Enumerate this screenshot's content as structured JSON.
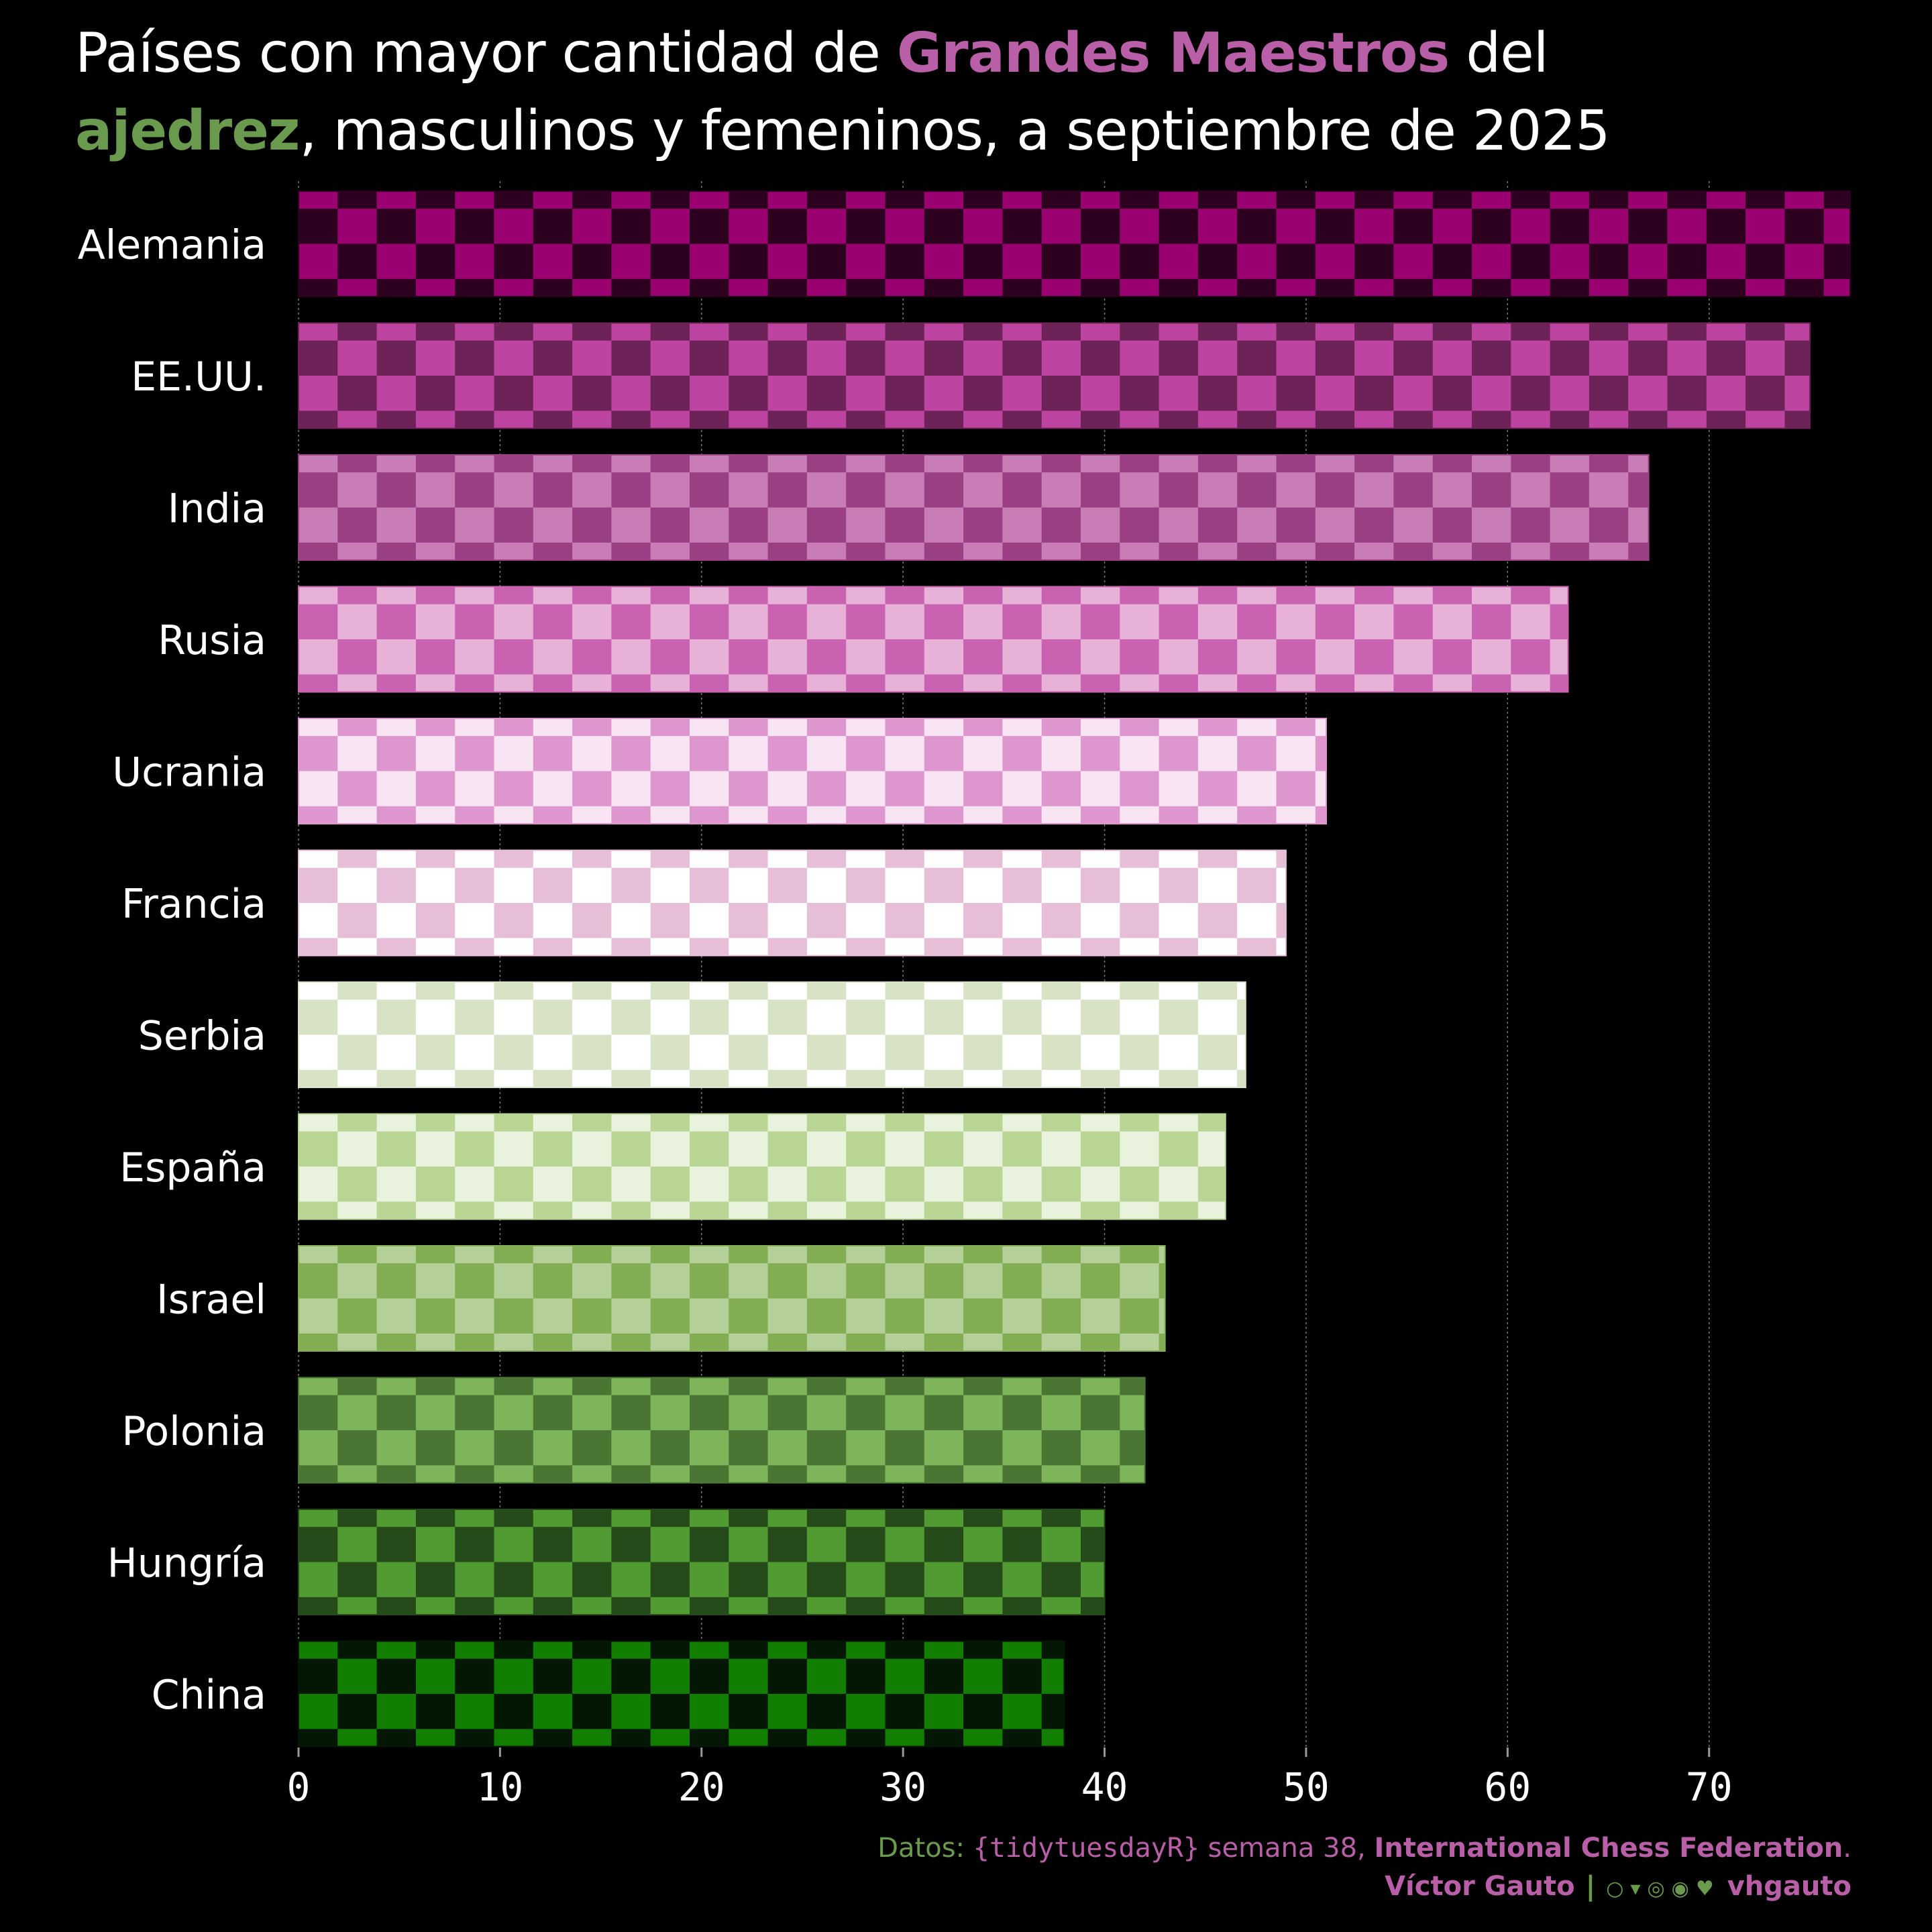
{
  "title": {
    "part1": "Países con mayor cantidad de ",
    "highlight1": "Grandes Maestros",
    "part2": " del",
    "highlight2": "ajedrez",
    "part3": ", masculinos y femeninos, a septiembre de 2025"
  },
  "caption": {
    "datos_label": "Datos: ",
    "source_pkg": "{tidytuesdayR}",
    "week": " semana 38, ",
    "org": "International Chess Federation",
    "period": ".",
    "author": "Víctor Gauto",
    "separator": "|",
    "social_icons": [
      "github-icon",
      "twitter-icon",
      "instagram-icon",
      "mastodon-icon",
      "bluesky-icon"
    ],
    "icons_text": "○▾◎◉♥",
    "handle": "vhgauto"
  },
  "colors": {
    "background": "#000000",
    "pink_accent": "#b85fa8",
    "green_accent": "#6a9a4e",
    "text": "#ffffff"
  },
  "chart_data": {
    "type": "bar",
    "orientation": "horizontal",
    "fill_pattern": "checkerboard",
    "categories": [
      "Alemania",
      "EE.UU.",
      "India",
      "Rusia",
      "Ucrania",
      "Francia",
      "Serbia",
      "España",
      "Israel",
      "Polonia",
      "Hungría",
      "China"
    ],
    "values": [
      77,
      75,
      67,
      63,
      51,
      49,
      47,
      46,
      43,
      42,
      40,
      38
    ],
    "bar_colors": [
      [
        "#9a0070",
        "#2e0020"
      ],
      [
        "#bd44a0",
        "#6e2358"
      ],
      [
        "#c97db6",
        "#9b3f85"
      ],
      [
        "#e8b2d8",
        "#c862b1"
      ],
      [
        "#f8e4f2",
        "#de97ce"
      ],
      [
        "#ffffff",
        "#e6bed8"
      ],
      [
        "#ffffff",
        "#d8e2c4"
      ],
      [
        "#e8f2dc",
        "#b9d594"
      ],
      [
        "#b4cf98",
        "#83ad52"
      ],
      [
        "#7fb55a",
        "#4b7533"
      ],
      [
        "#529a32",
        "#254b1a"
      ],
      [
        "#127e00",
        "#041704"
      ]
    ],
    "xlim": [
      0,
      77
    ],
    "xticks": [
      0,
      10,
      20,
      30,
      40,
      50,
      60,
      70
    ],
    "xlabel": "",
    "ylabel": "",
    "grid": "vertical dotted"
  }
}
